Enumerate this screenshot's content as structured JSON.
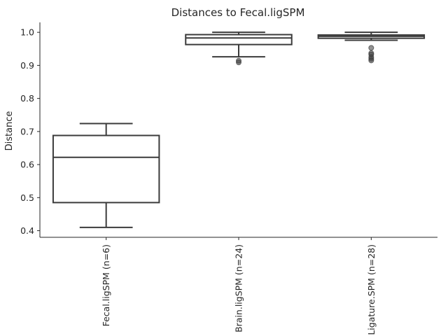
{
  "chart_data": {
    "type": "box",
    "title": "Distances to Fecal.ligSPM",
    "xlabel": "",
    "ylabel": "Distance",
    "ylim": [
      0.38,
      1.03
    ],
    "yticks": [
      "0.4",
      "0.5",
      "0.6",
      "0.7",
      "0.8",
      "0.9",
      "1.0"
    ],
    "grid": false,
    "categories": [
      "Fecal.ligSPM (n=6)",
      "Brain.ligSPM (n=24)",
      "Ligature.SPM (n=28)"
    ],
    "boxes": [
      {
        "min": 0.41,
        "q1": 0.485,
        "median": 0.622,
        "q3": 0.688,
        "max": 0.724,
        "outliers": []
      },
      {
        "min": 0.926,
        "q1": 0.963,
        "median": 0.983,
        "q3": 0.993,
        "max": 1.0,
        "outliers": [
          0.909,
          0.914
        ]
      },
      {
        "min": 0.976,
        "q1": 0.982,
        "median": 0.988,
        "q3": 0.992,
        "max": 1.0,
        "outliers": [
          0.915,
          0.92,
          0.925,
          0.933,
          0.937,
          0.953
        ]
      }
    ]
  }
}
